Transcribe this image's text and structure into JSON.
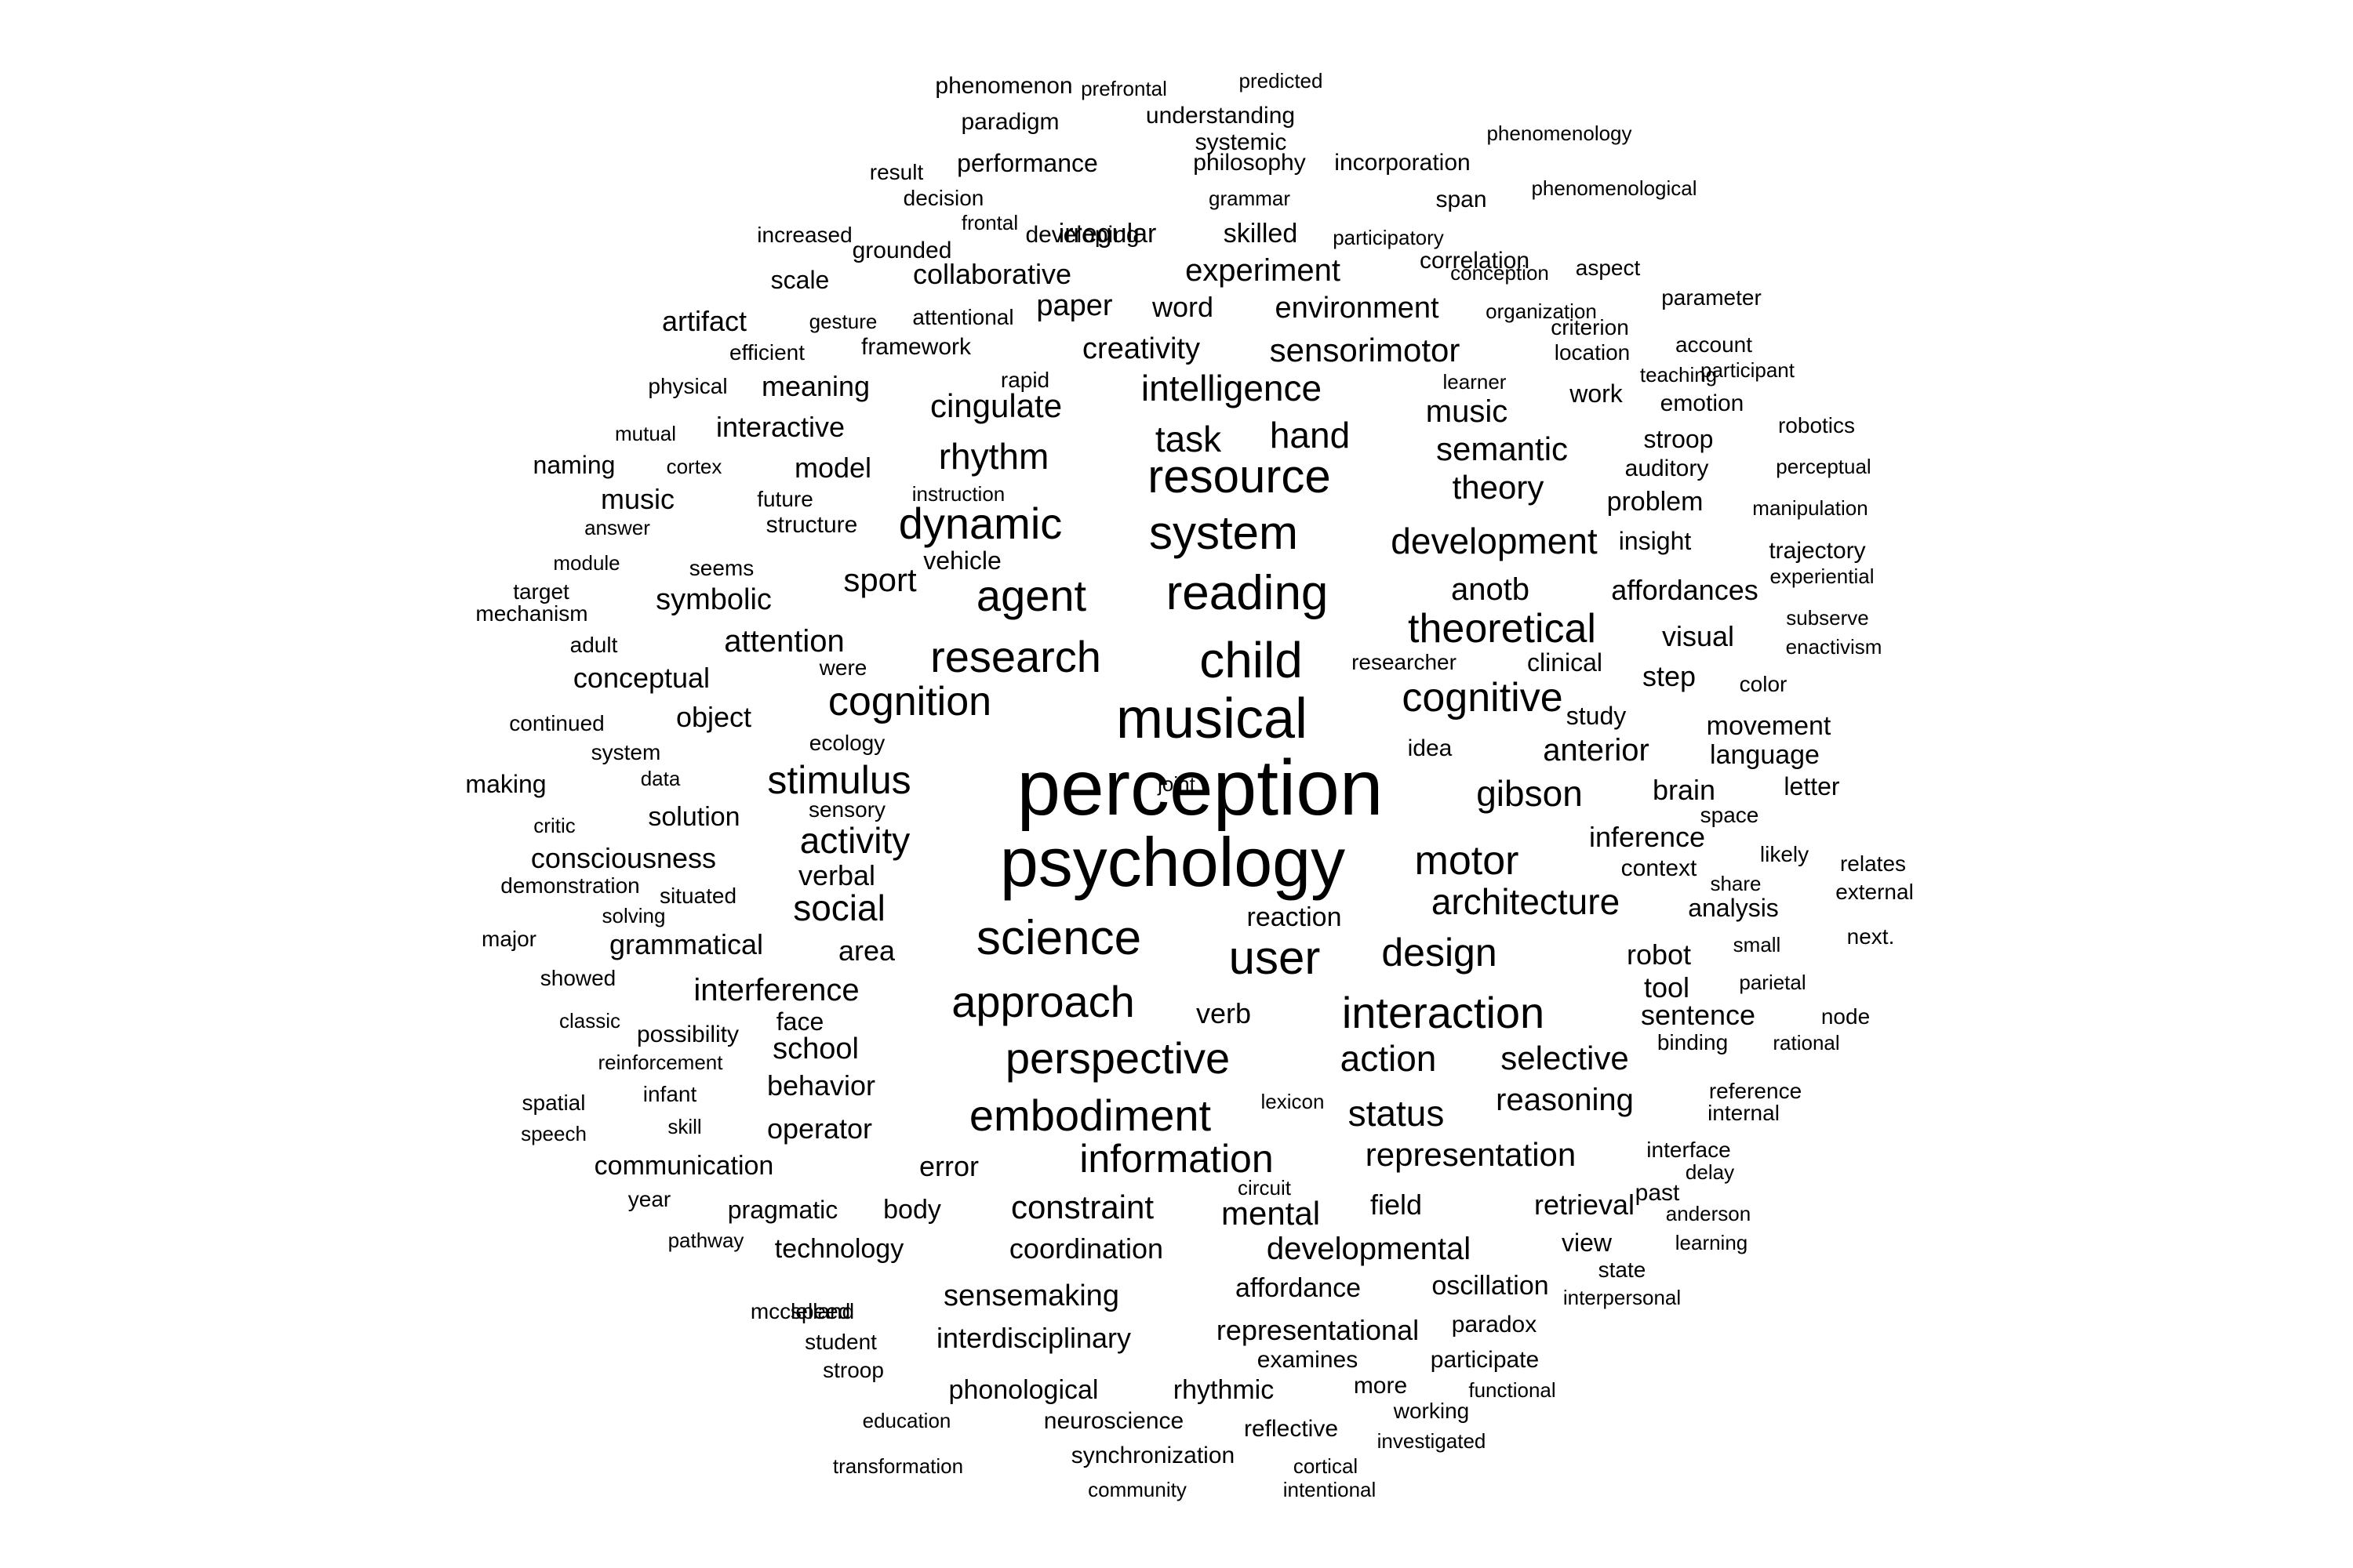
{
  "text_color": "#000000",
  "background": "#ffffff",
  "words": [
    {
      "text": "perception",
      "size": 100
    },
    {
      "text": "psychology",
      "size": 88
    },
    {
      "text": "musical",
      "size": 72
    },
    {
      "text": "child",
      "size": 64
    },
    {
      "text": "reading",
      "size": 62
    },
    {
      "text": "system",
      "size": 60
    },
    {
      "text": "resource",
      "size": 60
    },
    {
      "text": "user",
      "size": 60
    },
    {
      "text": "science",
      "size": 62
    },
    {
      "text": "approach",
      "size": 56
    },
    {
      "text": "perspective",
      "size": 56
    },
    {
      "text": "embodiment",
      "size": 56
    },
    {
      "text": "dynamic",
      "size": 56
    },
    {
      "text": "research",
      "size": 56
    },
    {
      "text": "agent",
      "size": 56
    },
    {
      "text": "interaction",
      "size": 56
    },
    {
      "text": "cognition",
      "size": 52
    },
    {
      "text": "cognitive",
      "size": 52
    },
    {
      "text": "theoretical",
      "size": 52
    },
    {
      "text": "motor",
      "size": 52
    },
    {
      "text": "stimulus",
      "size": 50
    },
    {
      "text": "information",
      "size": 50
    },
    {
      "text": "design",
      "size": 50
    },
    {
      "text": "architecture",
      "size": 46
    },
    {
      "text": "gibson",
      "size": 46
    },
    {
      "text": "intelligence",
      "size": 46
    },
    {
      "text": "development",
      "size": 46
    },
    {
      "text": "rhythm",
      "size": 46
    },
    {
      "text": "activity",
      "size": 46
    },
    {
      "text": "social",
      "size": 46
    },
    {
      "text": "action",
      "size": 46
    },
    {
      "text": "status",
      "size": 46
    },
    {
      "text": "task",
      "size": 46
    },
    {
      "text": "hand",
      "size": 46
    },
    {
      "text": "representation",
      "size": 42
    },
    {
      "text": "constraint",
      "size": 42
    },
    {
      "text": "mental",
      "size": 42
    },
    {
      "text": "selective",
      "size": 42
    },
    {
      "text": "sensorimotor",
      "size": 42
    },
    {
      "text": "semantic",
      "size": 42
    },
    {
      "text": "theory",
      "size": 42
    },
    {
      "text": "cingulate",
      "size": 42
    },
    {
      "text": "sport",
      "size": 42
    },
    {
      "text": "attention",
      "size": 40
    },
    {
      "text": "interference",
      "size": 40
    },
    {
      "text": "developmental",
      "size": 40
    },
    {
      "text": "reasoning",
      "size": 40
    },
    {
      "text": "anterior",
      "size": 40
    },
    {
      "text": "music",
      "size": 40
    },
    {
      "text": "anotb",
      "size": 40
    },
    {
      "text": "experiment",
      "size": 40
    },
    {
      "text": "environment",
      "size": 38
    },
    {
      "text": "creativity",
      "size": 38
    },
    {
      "text": "paper",
      "size": 38
    },
    {
      "text": "sensemaking",
      "size": 38
    },
    {
      "text": "interdisciplinary",
      "size": 36
    },
    {
      "text": "representational",
      "size": 36
    },
    {
      "text": "coordination",
      "size": 36
    },
    {
      "text": "technology",
      "size": 34
    },
    {
      "text": "communication",
      "size": 34
    },
    {
      "text": "grammatical",
      "size": 36
    },
    {
      "text": "consciousness",
      "size": 36
    },
    {
      "text": "conceptual",
      "size": 36
    },
    {
      "text": "symbolic",
      "size": 38
    },
    {
      "text": "school",
      "size": 38
    },
    {
      "text": "behavior",
      "size": 36
    },
    {
      "text": "operator",
      "size": 36
    },
    {
      "text": "area",
      "size": 36
    },
    {
      "text": "object",
      "size": 36
    },
    {
      "text": "solution",
      "size": 34
    },
    {
      "text": "model",
      "size": 36
    },
    {
      "text": "interactive",
      "size": 36
    },
    {
      "text": "meaning",
      "size": 36
    },
    {
      "text": "collaborative",
      "size": 36
    },
    {
      "text": "robot",
      "size": 36
    },
    {
      "text": "inference",
      "size": 36
    },
    {
      "text": "affordances",
      "size": 36
    },
    {
      "text": "visual",
      "size": 36
    },
    {
      "text": "step",
      "size": 36
    },
    {
      "text": "brain",
      "size": 36
    },
    {
      "text": "movement",
      "size": 34
    },
    {
      "text": "language",
      "size": 34
    },
    {
      "text": "sentence",
      "size": 36
    },
    {
      "text": "tool",
      "size": 36
    },
    {
      "text": "field",
      "size": 36
    },
    {
      "text": "retrieval",
      "size": 36
    },
    {
      "text": "oscillation",
      "size": 34
    },
    {
      "text": "affordance",
      "size": 34
    },
    {
      "text": "phonological",
      "size": 34
    },
    {
      "text": "rhythmic",
      "size": 34
    },
    {
      "text": "reaction",
      "size": 34
    },
    {
      "text": "verb",
      "size": 36
    },
    {
      "text": "error",
      "size": 36
    },
    {
      "text": "body",
      "size": 34
    },
    {
      "text": "pragmatic",
      "size": 32
    },
    {
      "text": "problem",
      "size": 34
    },
    {
      "text": "insight",
      "size": 32
    },
    {
      "text": "work",
      "size": 32
    },
    {
      "text": "stroop",
      "size": 32
    },
    {
      "text": "auditory",
      "size": 30
    },
    {
      "text": "analysis",
      "size": 32
    },
    {
      "text": "context",
      "size": 30
    },
    {
      "text": "view",
      "size": 32
    },
    {
      "text": "past",
      "size": 30
    },
    {
      "text": "reference",
      "size": 28
    },
    {
      "text": "internal",
      "size": 28
    },
    {
      "text": "interface",
      "size": 28
    },
    {
      "text": "binding",
      "size": 28
    },
    {
      "text": "state",
      "size": 28
    },
    {
      "text": "paradox",
      "size": 30
    },
    {
      "text": "participate",
      "size": 30
    },
    {
      "text": "working",
      "size": 28
    },
    {
      "text": "examines",
      "size": 30
    },
    {
      "text": "more",
      "size": 30
    },
    {
      "text": "reflective",
      "size": 30
    },
    {
      "text": "neuroscience",
      "size": 30
    },
    {
      "text": "synchronization",
      "size": 30
    },
    {
      "text": "investigated",
      "size": 26
    },
    {
      "text": "functional",
      "size": 26
    },
    {
      "text": "cortical",
      "size": 26
    },
    {
      "text": "intentional",
      "size": 26
    },
    {
      "text": "community",
      "size": 26
    },
    {
      "text": "transformation",
      "size": 26
    },
    {
      "text": "education",
      "size": 26
    },
    {
      "text": "student",
      "size": 28
    },
    {
      "text": "stroop",
      "size": 28
    },
    {
      "text": "speed",
      "size": 28
    },
    {
      "text": "mcclelland",
      "size": 28
    },
    {
      "text": "pathway",
      "size": 26
    },
    {
      "text": "year",
      "size": 28
    },
    {
      "text": "circuit",
      "size": 26
    },
    {
      "text": "lexicon",
      "size": 26
    },
    {
      "text": "skill",
      "size": 26
    },
    {
      "text": "infant",
      "size": 28
    },
    {
      "text": "spatial",
      "size": 28
    },
    {
      "text": "speech",
      "size": 26
    },
    {
      "text": "reinforcement",
      "size": 26
    },
    {
      "text": "possibility",
      "size": 30
    },
    {
      "text": "face",
      "size": 32
    },
    {
      "text": "classic",
      "size": 26
    },
    {
      "text": "showed",
      "size": 28
    },
    {
      "text": "major",
      "size": 28
    },
    {
      "text": "solving",
      "size": 26
    },
    {
      "text": "demonstration",
      "size": 28
    },
    {
      "text": "situated",
      "size": 28
    },
    {
      "text": "verbal",
      "size": 36
    },
    {
      "text": "critic",
      "size": 26
    },
    {
      "text": "sensory",
      "size": 28
    },
    {
      "text": "data",
      "size": 26
    },
    {
      "text": "making",
      "size": 32
    },
    {
      "text": "system",
      "size": 28
    },
    {
      "text": "continued",
      "size": 28
    },
    {
      "text": "ecology",
      "size": 28
    },
    {
      "text": "were",
      "size": 28
    },
    {
      "text": "adult",
      "size": 28
    },
    {
      "text": "mechanism",
      "size": 28
    },
    {
      "text": "target",
      "size": 28
    },
    {
      "text": "module",
      "size": 26
    },
    {
      "text": "seems",
      "size": 28
    },
    {
      "text": "vehicle",
      "size": 32
    },
    {
      "text": "answer",
      "size": 26
    },
    {
      "text": "structure",
      "size": 30
    },
    {
      "text": "music",
      "size": 36
    },
    {
      "text": "future",
      "size": 28
    },
    {
      "text": "instruction",
      "size": 26
    },
    {
      "text": "cortex",
      "size": 26
    },
    {
      "text": "naming",
      "size": 32
    },
    {
      "text": "mutual",
      "size": 26
    },
    {
      "text": "physical",
      "size": 28
    },
    {
      "text": "rapid",
      "size": 28
    },
    {
      "text": "efficient",
      "size": 28
    },
    {
      "text": "framework",
      "size": 30
    },
    {
      "text": "artifact",
      "size": 36
    },
    {
      "text": "gesture",
      "size": 26
    },
    {
      "text": "attentional",
      "size": 28
    },
    {
      "text": "word",
      "size": 36
    },
    {
      "text": "scale",
      "size": 32
    },
    {
      "text": "increased",
      "size": 28
    },
    {
      "text": "grounded",
      "size": 30
    },
    {
      "text": "frontal",
      "size": 26
    },
    {
      "text": "developing",
      "size": 30
    },
    {
      "text": "irregular",
      "size": 34
    },
    {
      "text": "skilled",
      "size": 34
    },
    {
      "text": "result",
      "size": 28
    },
    {
      "text": "decision",
      "size": 28
    },
    {
      "text": "performance",
      "size": 32
    },
    {
      "text": "grammar",
      "size": 26
    },
    {
      "text": "philosophy",
      "size": 30
    },
    {
      "text": "incorporation",
      "size": 30
    },
    {
      "text": "span",
      "size": 30
    },
    {
      "text": "paradigm",
      "size": 30
    },
    {
      "text": "understanding",
      "size": 30
    },
    {
      "text": "systemic",
      "size": 30
    },
    {
      "text": "phenomenon",
      "size": 30
    },
    {
      "text": "prefrontal",
      "size": 26
    },
    {
      "text": "predicted",
      "size": 26
    },
    {
      "text": "phenomenology",
      "size": 26
    },
    {
      "text": "phenomenological",
      "size": 26
    },
    {
      "text": "participatory",
      "size": 26
    },
    {
      "text": "correlation",
      "size": 30
    },
    {
      "text": "conception",
      "size": 26
    },
    {
      "text": "aspect",
      "size": 28
    },
    {
      "text": "parameter",
      "size": 28
    },
    {
      "text": "organization",
      "size": 26
    },
    {
      "text": "criterion",
      "size": 28
    },
    {
      "text": "location",
      "size": 28
    },
    {
      "text": "account",
      "size": 28
    },
    {
      "text": "participant",
      "size": 26
    },
    {
      "text": "teaching",
      "size": 26
    },
    {
      "text": "learner",
      "size": 26
    },
    {
      "text": "emotion",
      "size": 30
    },
    {
      "text": "robotics",
      "size": 28
    },
    {
      "text": "perceptual",
      "size": 26
    },
    {
      "text": "manipulation",
      "size": 26
    },
    {
      "text": "trajectory",
      "size": 30
    },
    {
      "text": "experiential",
      "size": 26
    },
    {
      "text": "subserve",
      "size": 26
    },
    {
      "text": "enactivism",
      "size": 26
    },
    {
      "text": "researcher",
      "size": 28
    },
    {
      "text": "clinical",
      "size": 32
    },
    {
      "text": "color",
      "size": 28
    },
    {
      "text": "study",
      "size": 32
    },
    {
      "text": "idea",
      "size": 30
    },
    {
      "text": "letter",
      "size": 32
    },
    {
      "text": "space",
      "size": 28
    },
    {
      "text": "likely",
      "size": 28
    },
    {
      "text": "relates",
      "size": 28
    },
    {
      "text": "share",
      "size": 26
    },
    {
      "text": "external",
      "size": 28
    },
    {
      "text": "small",
      "size": 26
    },
    {
      "text": "next.",
      "size": 28
    },
    {
      "text": "parietal",
      "size": 26
    },
    {
      "text": "node",
      "size": 28
    },
    {
      "text": "rational",
      "size": 26
    },
    {
      "text": "delay",
      "size": 26
    },
    {
      "text": "anderson",
      "size": 26
    },
    {
      "text": "learning",
      "size": 26
    },
    {
      "text": "interpersonal",
      "size": 26
    },
    {
      "text": "joint",
      "size": 26
    }
  ]
}
